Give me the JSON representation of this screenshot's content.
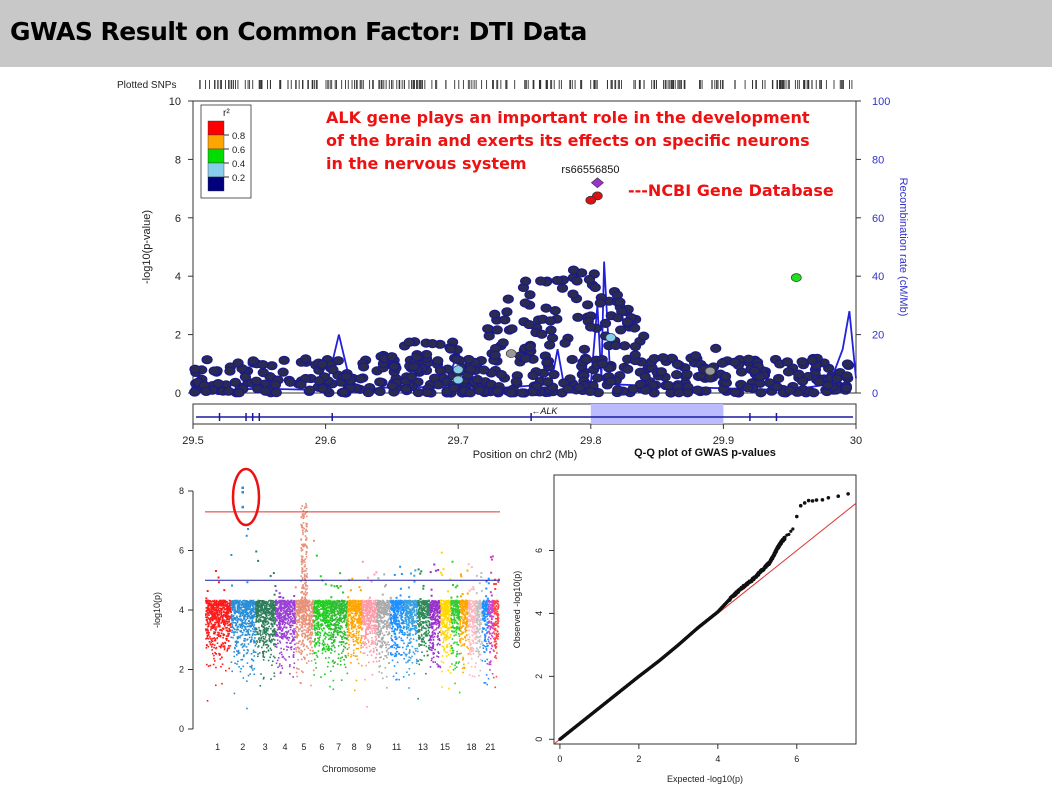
{
  "page": {
    "title": "GWAS Result on Common Factor: DTI Data"
  },
  "colors": {
    "annotation": "#ee1111",
    "recomb_line": "#2222dd",
    "highlight_region": "#bbbbff",
    "manhattan_chr": [
      "#ff1a1a",
      "#2a8fd6",
      "#2e7d5b",
      "#9a3fd6",
      "#e8917a",
      "#22cc22",
      "#33bb33",
      "#ffa500",
      "#ff9aa8",
      "#aaaaaa",
      "#1e90ff",
      "#3aa0e0",
      "#2e8b57",
      "#9932cc",
      "#ffd700",
      "#32cd32",
      "#ffa500",
      "#ffb6c1",
      "#c0c0c0",
      "#1e90ff",
      "#cc44cc",
      "#ff4444"
    ]
  },
  "annotation": {
    "text": "ALK gene plays an important role in the development of the brain and exerts its effects on specific neurons in the nervous system",
    "source": "---NCBI Gene Database"
  },
  "chart_data": [
    {
      "type": "scatter",
      "name": "regional",
      "top_label": "Plotted SNPs",
      "xlabel": "Position on chr2 (Mb)",
      "ylabel": "-log10(p-value)",
      "ylabel2": "Recombination rate (cM/Mb)",
      "xlim": [
        29.5,
        30.0
      ],
      "ylim": [
        0,
        10
      ],
      "y2lim": [
        0,
        100
      ],
      "xticks": [
        "29.5",
        "29.6",
        "29.7",
        "29.8",
        "29.9",
        "30"
      ],
      "yticks": [
        "0",
        "2",
        "4",
        "6",
        "8",
        "10"
      ],
      "y2ticks": [
        "0",
        "20",
        "40",
        "60",
        "80",
        "100"
      ],
      "legend": {
        "title": "r²",
        "placement": "top-left",
        "labels": [
          "0.8",
          "0.6",
          "0.4",
          "0.2"
        ],
        "colors": [
          "#ff0000",
          "#ffa500",
          "#00dd00",
          "#87ceeb",
          "#00007f"
        ]
      },
      "lead_snp": {
        "label": "rs66556850",
        "x": 29.805,
        "y": 7.2
      },
      "gene": {
        "label": "ALK",
        "start": 29.42,
        "end": 30.15,
        "highlight": [
          29.8,
          29.9
        ]
      },
      "colored_points": [
        {
          "x": 29.805,
          "y": 7.2,
          "color": "#9933cc"
        },
        {
          "x": 29.805,
          "y": 6.75,
          "color": "#dd1111"
        },
        {
          "x": 29.8,
          "y": 6.6,
          "color": "#dd1111"
        },
        {
          "x": 29.955,
          "y": 3.95,
          "color": "#22dd22"
        },
        {
          "x": 29.815,
          "y": 1.9,
          "color": "#87ceeb"
        },
        {
          "x": 29.7,
          "y": 0.8,
          "color": "#87ceeb"
        },
        {
          "x": 29.7,
          "y": 0.45,
          "color": "#87ceeb"
        },
        {
          "x": 29.89,
          "y": 0.75,
          "color": "#999999"
        },
        {
          "x": 29.74,
          "y": 1.35,
          "color": "#999999"
        }
      ],
      "recombination": [
        [
          29.5,
          0.5
        ],
        [
          29.55,
          1.5
        ],
        [
          29.6,
          1
        ],
        [
          29.61,
          20
        ],
        [
          29.62,
          1
        ],
        [
          29.65,
          2
        ],
        [
          29.69,
          2
        ],
        [
          29.7,
          14
        ],
        [
          29.71,
          1
        ],
        [
          29.77,
          3
        ],
        [
          29.775,
          15
        ],
        [
          29.78,
          2
        ],
        [
          29.8,
          3
        ],
        [
          29.805,
          30
        ],
        [
          29.808,
          5
        ],
        [
          29.81,
          45
        ],
        [
          29.815,
          3
        ],
        [
          29.87,
          2
        ],
        [
          29.95,
          1
        ],
        [
          29.98,
          3
        ],
        [
          29.99,
          15
        ],
        [
          29.995,
          28
        ],
        [
          30.0,
          5
        ]
      ],
      "clusters": [
        {
          "x0": 29.5,
          "x1": 30.0,
          "ymin": 0,
          "ymax": 1.2,
          "n": 420
        },
        {
          "x0": 29.72,
          "x1": 29.84,
          "ymin": 1.0,
          "ymax": 4.4,
          "n": 110
        },
        {
          "x0": 29.64,
          "x1": 29.72,
          "ymin": 0.8,
          "ymax": 2.0,
          "n": 35
        },
        {
          "x0": 29.84,
          "x1": 29.93,
          "ymin": 0.5,
          "ymax": 1.6,
          "n": 25
        }
      ]
    },
    {
      "type": "scatter",
      "name": "manhattan",
      "xlabel": "Chromosome",
      "ylabel": "-log10(p)",
      "ylim": [
        0,
        8.3
      ],
      "yticks": [
        "0",
        "2",
        "4",
        "6",
        "8"
      ],
      "xtick_labels": [
        {
          "chr": 1,
          "label": "1"
        },
        {
          "chr": 2,
          "label": "2"
        },
        {
          "chr": 3,
          "label": "3"
        },
        {
          "chr": 4,
          "label": "4"
        },
        {
          "chr": 5,
          "label": "5"
        },
        {
          "chr": 6,
          "label": "6"
        },
        {
          "chr": 7,
          "label": "7"
        },
        {
          "chr": 8,
          "label": "8"
        },
        {
          "chr": 9,
          "label": "9"
        },
        {
          "chr": 11,
          "label": "11"
        },
        {
          "chr": 13,
          "label": "13"
        },
        {
          "chr": 15,
          "label": "15"
        },
        {
          "chr": 18,
          "label": "18"
        },
        {
          "chr": 21,
          "label": "21"
        }
      ],
      "genome_wide_line": 7.3,
      "suggestive_line": 5.0,
      "chromosomes": [
        {
          "chr": 1,
          "len": 249,
          "top": 5.5
        },
        {
          "chr": 2,
          "len": 243,
          "top": 8.2
        },
        {
          "chr": 3,
          "len": 198,
          "top": 6.2
        },
        {
          "chr": 4,
          "len": 191,
          "top": 4.7
        },
        {
          "chr": 5,
          "len": 181,
          "top": 7.6
        },
        {
          "chr": 6,
          "len": 171,
          "top": 5.9
        },
        {
          "chr": 7,
          "len": 159,
          "top": 5.3
        },
        {
          "chr": 8,
          "len": 146,
          "top": 5.2
        },
        {
          "chr": 9,
          "len": 141,
          "top": 5.8
        },
        {
          "chr": 10,
          "len": 136,
          "top": 5.3
        },
        {
          "chr": 11,
          "len": 135,
          "top": 5.5
        },
        {
          "chr": 12,
          "len": 134,
          "top": 5.4
        },
        {
          "chr": 13,
          "len": 115,
          "top": 5.9
        },
        {
          "chr": 14,
          "len": 107,
          "top": 5.6
        },
        {
          "chr": 15,
          "len": 102,
          "top": 6.1
        },
        {
          "chr": 16,
          "len": 90,
          "top": 5.7
        },
        {
          "chr": 17,
          "len": 81,
          "top": 5.4
        },
        {
          "chr": 18,
          "len": 78,
          "top": 5.6
        },
        {
          "chr": 19,
          "len": 59,
          "top": 5.3
        },
        {
          "chr": 20,
          "len": 63,
          "top": 5.2
        },
        {
          "chr": 21,
          "len": 48,
          "top": 5.9
        },
        {
          "chr": 22,
          "len": 51,
          "top": 5.5
        }
      ]
    },
    {
      "type": "scatter",
      "name": "qq",
      "title": "Q-Q plot of GWAS p-values",
      "xlabel": "Expected  -log10(p)",
      "ylabel": "Observed  -log10(p)",
      "xlim": [
        -0.15,
        7.5
      ],
      "ylim": [
        -0.15,
        8.4
      ],
      "xticks": [
        "0",
        "2",
        "4",
        "6"
      ],
      "yticks": [
        "0",
        "2",
        "4",
        "6"
      ],
      "points": [
        [
          0,
          0
        ],
        [
          0.5,
          0.5
        ],
        [
          1,
          1
        ],
        [
          1.5,
          1.5
        ],
        [
          2,
          2
        ],
        [
          2.5,
          2.48
        ],
        [
          3,
          3
        ],
        [
          3.5,
          3.55
        ],
        [
          4,
          4.05
        ],
        [
          4.3,
          4.45
        ],
        [
          4.6,
          4.8
        ],
        [
          4.9,
          5.1
        ],
        [
          5.1,
          5.35
        ],
        [
          5.3,
          5.6
        ],
        [
          5.4,
          5.8
        ],
        [
          5.5,
          6.05
        ],
        [
          5.6,
          6.25
        ],
        [
          5.7,
          6.4
        ],
        [
          5.8,
          6.55
        ],
        [
          5.9,
          6.7
        ],
        [
          6.1,
          7.4
        ],
        [
          6.3,
          7.55
        ],
        [
          6.5,
          7.6
        ],
        [
          6.8,
          7.7
        ],
        [
          7.3,
          7.8
        ]
      ]
    }
  ]
}
